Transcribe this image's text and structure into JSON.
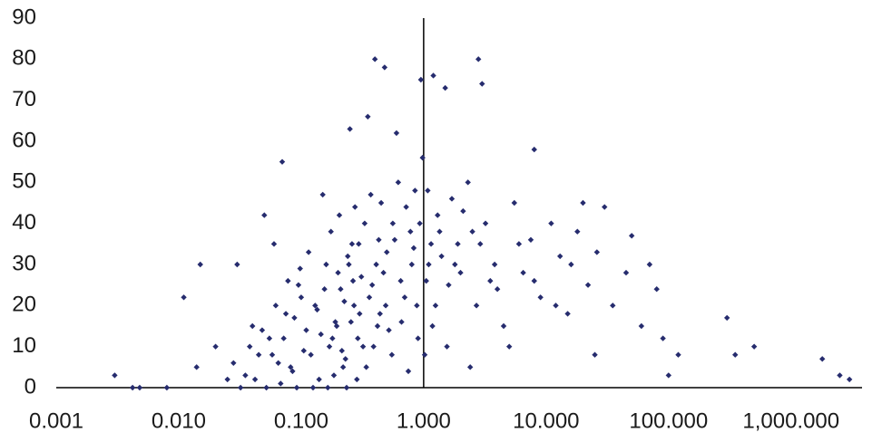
{
  "chart_data": {
    "type": "scatter",
    "log_x": true,
    "color": "#262c6e",
    "y_axis_crosses_x_at": 1,
    "xlim": [
      0.001,
      3800
    ],
    "ylim": [
      0,
      90
    ],
    "xticks": [
      0.001,
      {
        "value": 0.01,
        "label": "0.010"
      },
      {
        "value": 0.1,
        "label": "0.100"
      },
      {
        "value": 1,
        "label": "1.000"
      },
      {
        "value": 10,
        "label": "10.000"
      },
      {
        "value": 100,
        "label": "100.000"
      },
      {
        "value": 1000,
        "label": "1,000.000"
      }
    ],
    "yticks": [
      0,
      10,
      20,
      30,
      40,
      50,
      60,
      70,
      80,
      90
    ],
    "x": [
      0.003,
      0.0042,
      0.0048,
      0.008,
      0.011,
      0.015,
      0.014,
      0.4,
      0.48,
      0.95,
      1.2,
      2.8,
      3,
      0.25,
      0.35,
      0.6,
      1.5,
      8,
      2500,
      3000,
      1800,
      350,
      300,
      500,
      120,
      80,
      50,
      30,
      20,
      100,
      0.07,
      0.05,
      0.06,
      0.03,
      0.02,
      0.025,
      0.04,
      0.1,
      0.12,
      0.15,
      0.18,
      0.2,
      0.22,
      0.26,
      0.3,
      0.33,
      0.38,
      0.42,
      0.45,
      0.5,
      0.55,
      0.62,
      0.7,
      0.78,
      0.85,
      0.9,
      1.1,
      1.3,
      1.6,
      1.9,
      2.3,
      2.7,
      3.2,
      3.8,
      4.5,
      5.5,
      6.5,
      7.5,
      9,
      11,
      13,
      15,
      18,
      22,
      26,
      35,
      45,
      60,
      70,
      90,
      0.035,
      0.045,
      0.055,
      0.065,
      0.075,
      0.085,
      0.095,
      0.11,
      0.13,
      0.14,
      0.16,
      0.17,
      0.19,
      0.21,
      0.23,
      0.24,
      0.27,
      0.29,
      0.31,
      0.34,
      0.36,
      0.39,
      0.41,
      0.44,
      0.47,
      0.52,
      0.58,
      0.65,
      0.72,
      0.8,
      0.88,
      0.98,
      1.05,
      1.15,
      1.25,
      1.4,
      1.7,
      2.0,
      2.5,
      3.5,
      0.028,
      0.032,
      0.038,
      0.042,
      0.048,
      0.052,
      0.058,
      0.062,
      0.068,
      0.072,
      0.078,
      0.082,
      0.088,
      0.092,
      0.098,
      0.105,
      0.115,
      0.125,
      0.135,
      0.145,
      0.155,
      0.165,
      0.175,
      0.185,
      0.195,
      0.205,
      0.215,
      0.225,
      0.235,
      0.245,
      0.255,
      0.265,
      0.275,
      0.285,
      0.295,
      0.32,
      0.37,
      0.43,
      0.49,
      0.56,
      0.66,
      0.75,
      0.83,
      0.93,
      1.02,
      1.08,
      1.18,
      1.35,
      1.55,
      1.8,
      2.1,
      2.4,
      2.9,
      4,
      5,
      6,
      8,
      12,
      16,
      25
    ],
    "values": [
      3,
      0,
      0,
      0,
      22,
      30,
      5,
      80,
      78,
      75,
      76,
      80,
      74,
      63,
      66,
      62,
      73,
      58,
      3,
      2,
      7,
      8,
      17,
      10,
      8,
      24,
      37,
      44,
      45,
      3,
      55,
      42,
      35,
      30,
      10,
      2,
      15,
      22,
      8,
      47,
      12,
      28,
      5,
      35,
      18,
      40,
      25,
      15,
      45,
      33,
      8,
      50,
      22,
      38,
      48,
      12,
      30,
      42,
      25,
      35,
      50,
      20,
      40,
      30,
      15,
      45,
      28,
      36,
      22,
      40,
      32,
      18,
      38,
      25,
      33,
      20,
      28,
      15,
      30,
      12,
      3,
      8,
      12,
      6,
      18,
      4,
      25,
      14,
      20,
      2,
      30,
      10,
      16,
      24,
      7,
      32,
      20,
      12,
      27,
      5,
      22,
      10,
      30,
      18,
      28,
      14,
      36,
      26,
      44,
      30,
      20,
      56,
      26,
      35,
      20,
      32,
      46,
      28,
      38,
      26,
      6,
      0,
      10,
      2,
      14,
      0,
      8,
      20,
      1,
      12,
      26,
      5,
      17,
      0,
      29,
      9,
      33,
      0,
      19,
      13,
      24,
      0,
      38,
      3,
      15,
      42,
      9,
      21,
      0,
      30,
      16,
      26,
      44,
      2,
      35,
      10,
      47,
      36,
      20,
      40,
      16,
      4,
      34,
      40,
      8,
      48,
      15,
      38,
      10,
      30,
      43,
      5,
      35,
      24,
      10,
      35,
      26,
      20,
      30,
      8
    ]
  }
}
